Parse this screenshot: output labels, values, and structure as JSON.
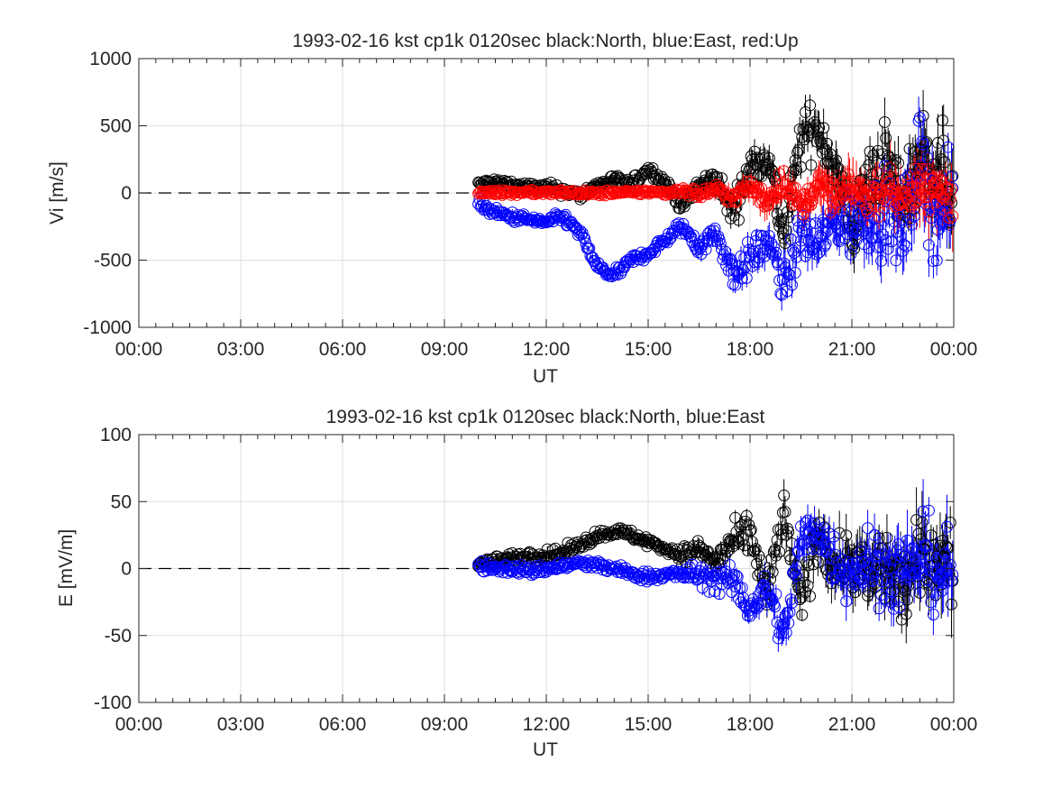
{
  "chart_data": [
    {
      "type": "scatter",
      "title": "1993-02-16 kst cp1k 0120sec black:North, blue:East, red:Up",
      "xlabel": "UT",
      "ylabel": "Vi [m/s]",
      "xlim": [
        "00:00",
        "24:00"
      ],
      "ylim": [
        -1000,
        1000
      ],
      "xticks": [
        "00:00",
        "03:00",
        "06:00",
        "09:00",
        "12:00",
        "15:00",
        "18:00",
        "21:00",
        "00:00"
      ],
      "yticks": [
        "-1000",
        "-500",
        "0",
        "500",
        "1000"
      ],
      "grid": true,
      "zero_line": "dashed",
      "marker": "open-circle-with-errorbar",
      "data_start": "10:00",
      "data_end": "24:00",
      "series": [
        {
          "color": "#000000",
          "x": [
            "10:00",
            "10:30",
            "11:00",
            "11:30",
            "12:00",
            "12:30",
            "13:00",
            "13:30",
            "14:00",
            "14:30",
            "15:00",
            "15:30",
            "16:00",
            "16:30",
            "17:00",
            "17:30",
            "18:00",
            "18:30",
            "19:00",
            "19:30",
            "20:00",
            "20:30",
            "21:00",
            "21:30",
            "22:00",
            "22:30",
            "23:00",
            "23:30",
            "24:00"
          ],
          "y": [
            60,
            80,
            60,
            40,
            40,
            20,
            -20,
            60,
            100,
            60,
            180,
            80,
            -100,
            60,
            100,
            -150,
            200,
            300,
            -350,
            400,
            500,
            200,
            -300,
            100,
            250,
            -100,
            300,
            200,
            50
          ]
        },
        {
          "color": "#0000ff",
          "x": [
            "10:00",
            "10:30",
            "11:00",
            "11:30",
            "12:00",
            "12:30",
            "13:00",
            "13:30",
            "14:00",
            "14:30",
            "15:00",
            "15:30",
            "16:00",
            "16:30",
            "17:00",
            "17:30",
            "18:00",
            "18:30",
            "19:00",
            "19:30",
            "20:00",
            "20:30",
            "21:00",
            "21:30",
            "22:00",
            "22:30",
            "23:00",
            "23:30",
            "24:00"
          ],
          "y": [
            -80,
            -150,
            -180,
            -200,
            -220,
            -180,
            -300,
            -550,
            -620,
            -500,
            -450,
            -350,
            -250,
            -400,
            -300,
            -600,
            -500,
            -350,
            -700,
            -300,
            -400,
            -200,
            -250,
            -150,
            -200,
            -300,
            250,
            -200,
            -100
          ]
        },
        {
          "color": "#ff0000",
          "x": [
            "10:00",
            "10:30",
            "11:00",
            "11:30",
            "12:00",
            "12:30",
            "13:00",
            "13:30",
            "14:00",
            "14:30",
            "15:00",
            "15:30",
            "16:00",
            "16:30",
            "17:00",
            "17:30",
            "18:00",
            "18:30",
            "19:00",
            "19:30",
            "20:00",
            "20:30",
            "21:00",
            "21:30",
            "22:00",
            "22:30",
            "23:00",
            "23:30",
            "24:00"
          ],
          "y": [
            0,
            10,
            0,
            10,
            0,
            5,
            0,
            -5,
            5,
            0,
            10,
            0,
            20,
            -10,
            30,
            -40,
            50,
            -60,
            100,
            -120,
            80,
            -50,
            40,
            -30,
            30,
            -20,
            20,
            10,
            0
          ]
        }
      ]
    },
    {
      "type": "scatter",
      "title": "1993-02-16 kst cp1k 0120sec black:North, blue:East",
      "xlabel": "UT",
      "ylabel": "E [mV/m]",
      "xlim": [
        "00:00",
        "24:00"
      ],
      "ylim": [
        -100,
        100
      ],
      "xticks": [
        "00:00",
        "03:00",
        "06:00",
        "09:00",
        "12:00",
        "15:00",
        "18:00",
        "21:00",
        "00:00"
      ],
      "yticks": [
        "-100",
        "-50",
        "0",
        "50",
        "100"
      ],
      "grid": true,
      "zero_line": "dashed",
      "marker": "open-circle-with-errorbar",
      "data_start": "10:00",
      "data_end": "24:00",
      "series": [
        {
          "color": "#000000",
          "x": [
            "10:00",
            "10:30",
            "11:00",
            "11:30",
            "12:00",
            "12:30",
            "13:00",
            "13:30",
            "14:00",
            "14:30",
            "15:00",
            "15:30",
            "16:00",
            "16:30",
            "17:00",
            "17:30",
            "18:00",
            "18:30",
            "19:00",
            "19:30",
            "20:00",
            "20:30",
            "21:00",
            "21:30",
            "22:00",
            "22:30",
            "23:00",
            "23:30",
            "24:00"
          ],
          "y": [
            4,
            6,
            8,
            10,
            10,
            12,
            18,
            25,
            28,
            25,
            20,
            15,
            10,
            15,
            5,
            20,
            25,
            -20,
            40,
            -30,
            30,
            0,
            10,
            -10,
            5,
            -15,
            5,
            10,
            5
          ]
        },
        {
          "color": "#0000ff",
          "x": [
            "10:00",
            "10:30",
            "11:00",
            "11:30",
            "12:00",
            "12:30",
            "13:00",
            "13:30",
            "14:00",
            "14:30",
            "15:00",
            "15:30",
            "16:00",
            "16:30",
            "17:00",
            "17:30",
            "18:00",
            "18:30",
            "19:00",
            "19:30",
            "20:00",
            "20:30",
            "21:00",
            "21:30",
            "22:00",
            "22:30",
            "23:00",
            "23:30",
            "24:00"
          ],
          "y": [
            2,
            0,
            0,
            -2,
            0,
            2,
            4,
            2,
            0,
            -4,
            -6,
            -5,
            -4,
            -5,
            -8,
            -10,
            -30,
            -15,
            -50,
            20,
            30,
            5,
            0,
            5,
            0,
            -5,
            10,
            0,
            -5
          ]
        }
      ]
    }
  ]
}
